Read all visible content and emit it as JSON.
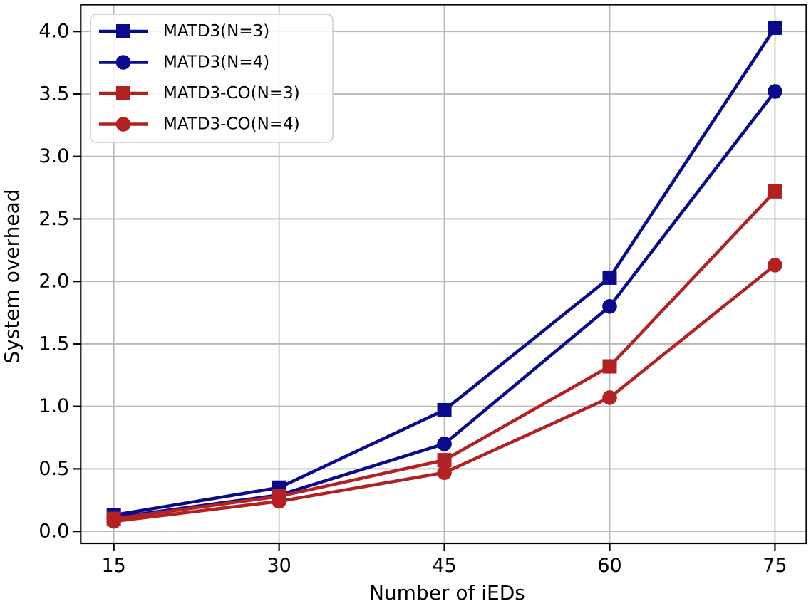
{
  "chart_data": {
    "type": "line",
    "title": "",
    "xlabel": "Number of iEDs",
    "ylabel": "System overhead",
    "x": [
      15,
      30,
      45,
      60,
      75
    ],
    "x_tick_labels": [
      "15",
      "30",
      "45",
      "60",
      "75"
    ],
    "y_tick_values": [
      0.0,
      0.5,
      1.0,
      1.5,
      2.0,
      2.5,
      3.0,
      3.5,
      4.0
    ],
    "y_tick_labels": [
      "0.0",
      "0.5",
      "1.0",
      "1.5",
      "2.0",
      "2.5",
      "3.0",
      "3.5",
      "4.0"
    ],
    "xlim": [
      12.0,
      77.85
    ],
    "ylim": [
      -0.096,
      4.215
    ],
    "grid": true,
    "legend_position": "upper-left",
    "series": [
      {
        "name": "MATD3(N=3)",
        "color": "#0A0A8C",
        "marker": "square",
        "values": [
          0.13,
          0.35,
          0.97,
          2.03,
          4.03
        ]
      },
      {
        "name": "MATD3(N=4)",
        "color": "#0A0A8C",
        "marker": "circle",
        "values": [
          0.11,
          0.29,
          0.7,
          1.8,
          3.52
        ]
      },
      {
        "name": "MATD3-CO(N=3)",
        "color": "#B22222",
        "marker": "square",
        "values": [
          0.1,
          0.28,
          0.57,
          1.32,
          2.72
        ]
      },
      {
        "name": "MATD3-CO(N=4)",
        "color": "#B22222",
        "marker": "circle",
        "values": [
          0.08,
          0.24,
          0.47,
          1.07,
          2.13
        ]
      }
    ],
    "colors": {
      "background": "#FFFFFF",
      "grid": "#B8B8B8",
      "spine": "#000000",
      "text": "#000000",
      "legend_border": "#CCCCCC",
      "blue_series": "#0A0A8C",
      "red_series": "#B22222"
    }
  }
}
